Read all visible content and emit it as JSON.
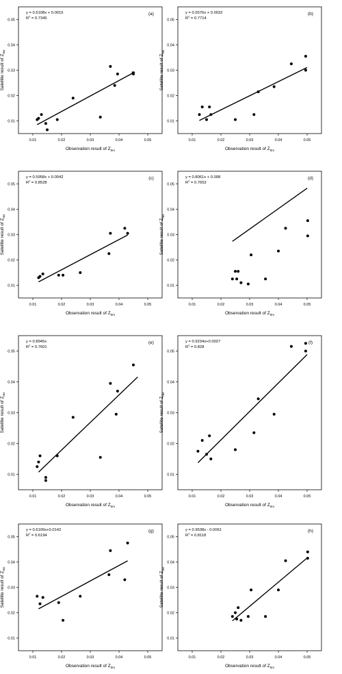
{
  "chart_data": [
    {
      "type": "scatter",
      "panel_label": "(a)",
      "equation": "y = 0.6108x + 0.0015",
      "r2_text": "R",
      "r2_value": " = 0.7345",
      "xlabel": "Observation result of Z",
      "xlabel_sub": "0m",
      "ylabel": "Satellite result of Z",
      "ylabel_sub": "ms",
      "xlim": [
        0.005,
        0.055
      ],
      "ylim": [
        0.005,
        0.055
      ],
      "xticks": [
        "0.01",
        "0.02",
        "0.03",
        "0.04",
        "0.05"
      ],
      "yticks": [
        "0.01",
        "0.02",
        "0.03",
        "0.04",
        "0.05"
      ],
      "points": [
        {
          "x": 0.0115,
          "y": 0.0105
        },
        {
          "x": 0.012,
          "y": 0.011
        },
        {
          "x": 0.013,
          "y": 0.0125
        },
        {
          "x": 0.0145,
          "y": 0.009
        },
        {
          "x": 0.015,
          "y": 0.0065
        },
        {
          "x": 0.0185,
          "y": 0.0105
        },
        {
          "x": 0.024,
          "y": 0.019
        },
        {
          "x": 0.0335,
          "y": 0.0115
        },
        {
          "x": 0.037,
          "y": 0.0315
        },
        {
          "x": 0.0385,
          "y": 0.024
        },
        {
          "x": 0.0395,
          "y": 0.0285
        },
        {
          "x": 0.0449,
          "y": 0.029
        },
        {
          "x": 0.045,
          "y": 0.0285
        }
      ],
      "fit": {
        "x0": 0.0115,
        "x1": 0.0455
      }
    },
    {
      "type": "scatter",
      "panel_label": "(b)",
      "equation": "y = 0.5576x + 0.0032",
      "r2_text": "R",
      "r2_value": " = 0.7714",
      "xlabel": "Observation result of Z",
      "xlabel_sub": "0m",
      "ylabel": "Satellite result of Z",
      "ylabel_sub": "ms",
      "xlim": [
        0.005,
        0.055
      ],
      "ylim": [
        0.005,
        0.055
      ],
      "xticks": [
        "0.01",
        "0.02",
        "0.03",
        "0.04",
        "0.05"
      ],
      "yticks": [
        "0.01",
        "0.02",
        "0.03",
        "0.04",
        "0.05"
      ],
      "points": [
        {
          "x": 0.0125,
          "y": 0.0125
        },
        {
          "x": 0.0135,
          "y": 0.0155
        },
        {
          "x": 0.015,
          "y": 0.0105
        },
        {
          "x": 0.016,
          "y": 0.0155
        },
        {
          "x": 0.0165,
          "y": 0.0125
        },
        {
          "x": 0.025,
          "y": 0.0105
        },
        {
          "x": 0.0315,
          "y": 0.0125
        },
        {
          "x": 0.033,
          "y": 0.0215
        },
        {
          "x": 0.0385,
          "y": 0.0235
        },
        {
          "x": 0.0445,
          "y": 0.0325
        },
        {
          "x": 0.0495,
          "y": 0.0355
        },
        {
          "x": 0.0495,
          "y": 0.03
        }
      ],
      "fit": {
        "x0": 0.0125,
        "x1": 0.05
      }
    },
    {
      "type": "scatter",
      "panel_label": "(c)",
      "equation": "y = 0.5958x + 0.0042",
      "r2_text": "R",
      "r2_value": " = 0.8528",
      "xlabel": "Observation result of Z",
      "xlabel_sub": "0m",
      "ylabel": "Satellite result of Z",
      "ylabel_sub": "ms",
      "xlim": [
        0.005,
        0.055
      ],
      "ylim": [
        0.005,
        0.055
      ],
      "xticks": [
        "0.01",
        "0.02",
        "0.03",
        "0.04",
        "0.05"
      ],
      "yticks": [
        "0.01",
        "0.02",
        "0.03",
        "0.04",
        "0.05"
      ],
      "points": [
        {
          "x": 0.012,
          "y": 0.013
        },
        {
          "x": 0.0125,
          "y": 0.0135
        },
        {
          "x": 0.0135,
          "y": 0.0145
        },
        {
          "x": 0.019,
          "y": 0.014
        },
        {
          "x": 0.0205,
          "y": 0.014
        },
        {
          "x": 0.0265,
          "y": 0.015
        },
        {
          "x": 0.0365,
          "y": 0.0225
        },
        {
          "x": 0.037,
          "y": 0.0305
        },
        {
          "x": 0.042,
          "y": 0.0325
        },
        {
          "x": 0.043,
          "y": 0.0305
        }
      ],
      "fit": {
        "x0": 0.012,
        "x1": 0.043
      }
    },
    {
      "type": "scatter",
      "panel_label": "(d)",
      "equation": "y = 0.8061x + 0.008",
      "r2_text": "R",
      "r2_value": " = 0.7653",
      "xlabel": "Observation result of Z",
      "xlabel_sub": "0m",
      "ylabel": "Satellite result of Z",
      "ylabel_sub": "ms",
      "xlim": [
        0.005,
        0.055
      ],
      "ylim": [
        0.005,
        0.055
      ],
      "xticks": [
        "0.01",
        "0.02",
        "0.03",
        "0.04",
        "0.05"
      ],
      "yticks": [
        "0.01",
        "0.02",
        "0.03",
        "0.04",
        "0.05"
      ],
      "points": [
        {
          "x": 0.024,
          "y": 0.0125
        },
        {
          "x": 0.025,
          "y": 0.0155
        },
        {
          "x": 0.0255,
          "y": 0.0125
        },
        {
          "x": 0.026,
          "y": 0.0155
        },
        {
          "x": 0.027,
          "y": 0.011
        },
        {
          "x": 0.0295,
          "y": 0.0105
        },
        {
          "x": 0.0305,
          "y": 0.022
        },
        {
          "x": 0.0355,
          "y": 0.0125
        },
        {
          "x": 0.04,
          "y": 0.0235
        },
        {
          "x": 0.0425,
          "y": 0.0325
        },
        {
          "x": 0.0502,
          "y": 0.0355
        },
        {
          "x": 0.0502,
          "y": 0.0295
        }
      ],
      "fit": {
        "x0": 0.024,
        "x1": 0.05
      }
    },
    {
      "type": "scatter",
      "panel_label": "(e)",
      "equation": "y = 0.8945x",
      "r2_text": "R",
      "r2_value": " = 0.7601",
      "xlabel": "Observation result of Z",
      "xlabel_sub": "0m",
      "ylabel": "Satellite result of Z",
      "ylabel_sub": "ms",
      "xlim": [
        0.005,
        0.055
      ],
      "ylim": [
        0.005,
        0.055
      ],
      "xticks": [
        "0.01",
        "0.02",
        "0.03",
        "0.04",
        "0.05"
      ],
      "yticks": [
        "0.01",
        "0.02",
        "0.03",
        "0.04",
        "0.05"
      ],
      "points": [
        {
          "x": 0.0115,
          "y": 0.0125
        },
        {
          "x": 0.012,
          "y": 0.014
        },
        {
          "x": 0.0125,
          "y": 0.016
        },
        {
          "x": 0.0145,
          "y": 0.009
        },
        {
          "x": 0.0145,
          "y": 0.008
        },
        {
          "x": 0.0185,
          "y": 0.016
        },
        {
          "x": 0.024,
          "y": 0.0285
        },
        {
          "x": 0.0335,
          "y": 0.0155
        },
        {
          "x": 0.037,
          "y": 0.0395
        },
        {
          "x": 0.039,
          "y": 0.0295
        },
        {
          "x": 0.0395,
          "y": 0.037
        },
        {
          "x": 0.045,
          "y": 0.0455
        }
      ],
      "fit": {
        "x0": 0.012,
        "x1": 0.0465
      }
    },
    {
      "type": "scatter",
      "panel_label": "(f)",
      "equation": "y = 0.9234x+0.0027",
      "r2_text": "R",
      "r2_value": " = 0.828",
      "xlabel": "Observation result of Z",
      "xlabel_sub": "0m",
      "ylabel": "Satellite result of Z",
      "ylabel_sub": "ms",
      "xlim": [
        0.005,
        0.055
      ],
      "ylim": [
        0.005,
        0.055
      ],
      "xticks": [
        "0.01",
        "0.02",
        "0.03",
        "0.04",
        "0.05"
      ],
      "yticks": [
        "0.01",
        "0.02",
        "0.03",
        "0.04",
        "0.05"
      ],
      "points": [
        {
          "x": 0.012,
          "y": 0.0175
        },
        {
          "x": 0.0135,
          "y": 0.021
        },
        {
          "x": 0.015,
          "y": 0.0165
        },
        {
          "x": 0.016,
          "y": 0.0225
        },
        {
          "x": 0.0165,
          "y": 0.015
        },
        {
          "x": 0.025,
          "y": 0.018
        },
        {
          "x": 0.0315,
          "y": 0.0235
        },
        {
          "x": 0.033,
          "y": 0.0345
        },
        {
          "x": 0.0385,
          "y": 0.0295
        },
        {
          "x": 0.0445,
          "y": 0.0515
        },
        {
          "x": 0.0495,
          "y": 0.0525
        },
        {
          "x": 0.0495,
          "y": 0.05
        }
      ],
      "fit": {
        "x0": 0.012,
        "x1": 0.05
      }
    },
    {
      "type": "scatter",
      "panel_label": "(g)",
      "equation": "y = 0.6109x+0.0142",
      "r2_text": "R",
      "r2_value": " = 0.6194",
      "xlabel": "Observation result of Z",
      "xlabel_sub": "0m",
      "ylabel": "Satellite result of Z",
      "ylabel_sub": "ms",
      "xlim": [
        0.005,
        0.055
      ],
      "ylim": [
        0.005,
        0.055
      ],
      "xticks": [
        "0.01",
        "0.02",
        "0.03",
        "0.04",
        "0.05"
      ],
      "yticks": [
        "0.01",
        "0.02",
        "0.03",
        "0.04",
        "0.05"
      ],
      "points": [
        {
          "x": 0.0115,
          "y": 0.0265
        },
        {
          "x": 0.0125,
          "y": 0.0235
        },
        {
          "x": 0.0135,
          "y": 0.026
        },
        {
          "x": 0.019,
          "y": 0.024
        },
        {
          "x": 0.0205,
          "y": 0.017
        },
        {
          "x": 0.0265,
          "y": 0.0265
        },
        {
          "x": 0.0365,
          "y": 0.035
        },
        {
          "x": 0.037,
          "y": 0.0445
        },
        {
          "x": 0.042,
          "y": 0.033
        },
        {
          "x": 0.043,
          "y": 0.0475
        }
      ],
      "fit": {
        "x0": 0.012,
        "x1": 0.043
      }
    },
    {
      "type": "scatter",
      "panel_label": "(h)",
      "equation": "y = 0.9538x - 0.0061",
      "r2_text": "R",
      "r2_value": " = 0.8118",
      "xlabel": "Observation result of Z",
      "xlabel_sub": "0m",
      "ylabel": "Satellite result of Z",
      "ylabel_sub": "ms",
      "xlim": [
        0.005,
        0.055
      ],
      "ylim": [
        0.005,
        0.055
      ],
      "xticks": [
        "0.01",
        "0.02",
        "0.03",
        "0.04",
        "0.05"
      ],
      "yticks": [
        "0.01",
        "0.02",
        "0.03",
        "0.04",
        "0.05"
      ],
      "points": [
        {
          "x": 0.024,
          "y": 0.0185
        },
        {
          "x": 0.025,
          "y": 0.02
        },
        {
          "x": 0.0255,
          "y": 0.0175
        },
        {
          "x": 0.026,
          "y": 0.022
        },
        {
          "x": 0.027,
          "y": 0.017
        },
        {
          "x": 0.0295,
          "y": 0.0185
        },
        {
          "x": 0.0305,
          "y": 0.029
        },
        {
          "x": 0.0355,
          "y": 0.0185
        },
        {
          "x": 0.04,
          "y": 0.029
        },
        {
          "x": 0.0425,
          "y": 0.0405
        },
        {
          "x": 0.0502,
          "y": 0.044
        },
        {
          "x": 0.0502,
          "y": 0.0415
        }
      ],
      "fit": {
        "x0": 0.024,
        "x1": 0.05
      }
    }
  ]
}
